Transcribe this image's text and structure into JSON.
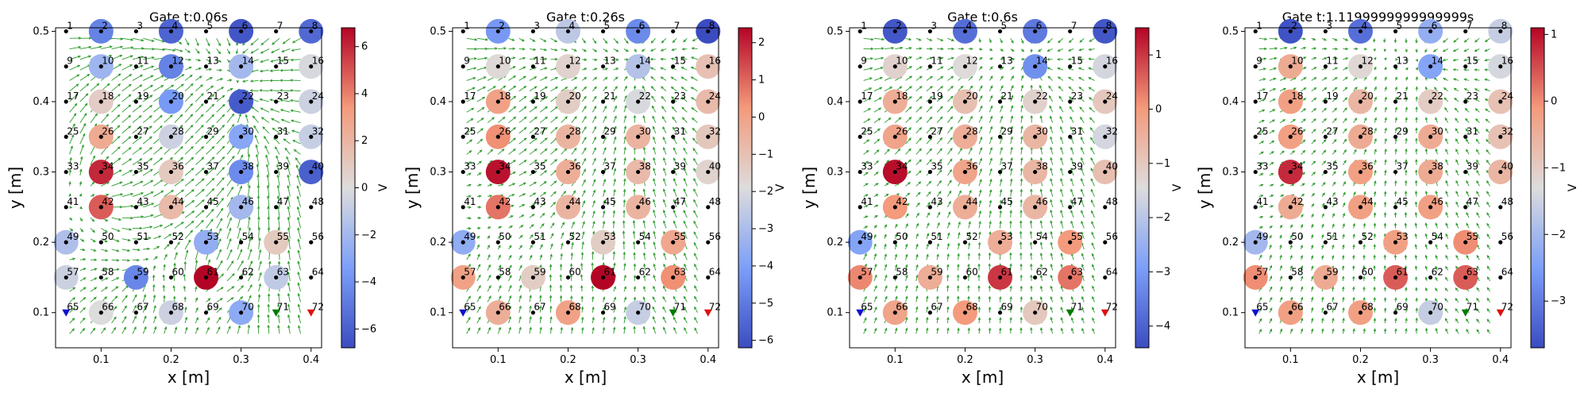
{
  "chart_data": [
    {
      "type": "scatter",
      "title": "Gate t:0.06s",
      "xlabel": "x [m]",
      "ylabel": "y [m]",
      "xlim": [
        0.035,
        0.415
      ],
      "ylim": [
        0.05,
        0.505
      ],
      "x_ticks": [
        0.1,
        0.2,
        0.3,
        0.4
      ],
      "x_tick_labels": [
        "0.1",
        "0.2",
        "0.3",
        "0.4"
      ],
      "y_ticks": [
        0.1,
        0.2,
        0.3,
        0.4,
        0.5
      ],
      "y_tick_labels": [
        "0.1",
        "0.2",
        "0.3",
        "0.4",
        "0.5"
      ],
      "colorbar": {
        "label": "V",
        "colormap": "coolwarm",
        "vmin": -6.8,
        "vmax": 6.8,
        "ticks": [
          -6,
          -4,
          -2,
          0,
          2,
          4,
          6
        ],
        "tick_labels": [
          "−6",
          "−4",
          "−2",
          "0",
          "2",
          "4",
          "6"
        ]
      },
      "electrode_values": {
        "2": -4.6,
        "4": -5.8,
        "6": -6.4,
        "8": -5.6,
        "10": -2.2,
        "12": -4.6,
        "14": -2.0,
        "16": -0.2,
        "18": 0.8,
        "20": -3.6,
        "22": -6.2,
        "24": -0.6,
        "26": 2.6,
        "28": -0.6,
        "30": -3.0,
        "32": -0.8,
        "34": 6.0,
        "36": 1.0,
        "38": -4.2,
        "40": -6.0,
        "42": 4.8,
        "44": 1.8,
        "46": -2.0,
        "49": -1.6,
        "53": -2.6,
        "55": 1.0,
        "57": -0.6,
        "59": -4.4,
        "61": 6.8,
        "63": -1.0,
        "66": 0.0,
        "68": -0.6,
        "70": -2.8
      },
      "markers": [
        {
          "electrode": 65,
          "color": "#1010cc"
        },
        {
          "electrode": 71,
          "color": "#007a00"
        },
        {
          "electrode": 72,
          "color": "#e01010"
        }
      ],
      "colors": {
        "arrows": "#2a9a2a",
        "points": "#000000"
      }
    },
    {
      "type": "scatter",
      "title": "Gate t:0.26s",
      "xlabel": "x [m]",
      "ylabel": "y [m]",
      "xlim": [
        0.035,
        0.415
      ],
      "ylim": [
        0.05,
        0.505
      ],
      "x_ticks": [
        0.1,
        0.2,
        0.3,
        0.4
      ],
      "x_tick_labels": [
        "0.1",
        "0.2",
        "0.3",
        "0.4"
      ],
      "y_ticks": [
        0.1,
        0.2,
        0.3,
        0.4,
        0.5
      ],
      "y_tick_labels": [
        "0.1",
        "0.2",
        "0.3",
        "0.4",
        "0.5"
      ],
      "colorbar": {
        "label": "V",
        "colormap": "coolwarm",
        "vmin": -6.2,
        "vmax": 2.4,
        "ticks": [
          -6,
          -5,
          -4,
          -3,
          -2,
          -1,
          0,
          1,
          2
        ],
        "tick_labels": [
          "−6",
          "−5",
          "−4",
          "−3",
          "−2",
          "−1",
          "0",
          "1",
          "2"
        ]
      },
      "electrode_values": {
        "2": -4.2,
        "4": -2.6,
        "6": -4.6,
        "8": -6.2,
        "10": -1.8,
        "12": -1.6,
        "14": -2.8,
        "16": -1.0,
        "18": 0.0,
        "20": -1.4,
        "22": -2.0,
        "24": -0.8,
        "26": 0.4,
        "28": -0.6,
        "30": -0.6,
        "32": -1.2,
        "34": 2.2,
        "36": -0.4,
        "38": -0.8,
        "40": -1.6,
        "42": 0.8,
        "44": -0.6,
        "46": -0.6,
        "49": -3.6,
        "53": -1.4,
        "55": -0.2,
        "57": 0.0,
        "59": -1.4,
        "61": 2.4,
        "63": 0.4,
        "66": -0.4,
        "68": 0.0,
        "70": -2.4
      },
      "markers": [
        {
          "electrode": 65,
          "color": "#1010cc"
        },
        {
          "electrode": 71,
          "color": "#007a00"
        },
        {
          "electrode": 72,
          "color": "#e01010"
        }
      ],
      "colors": {
        "arrows": "#2a9a2a",
        "points": "#000000"
      }
    },
    {
      "type": "scatter",
      "title": "Gate t:0.6s",
      "xlabel": "x [m]",
      "ylabel": "y [m]",
      "xlim": [
        0.035,
        0.415
      ],
      "ylim": [
        0.05,
        0.505
      ],
      "x_ticks": [
        0.1,
        0.2,
        0.3,
        0.4
      ],
      "x_tick_labels": [
        "0.1",
        "0.2",
        "0.3",
        "0.4"
      ],
      "y_ticks": [
        0.1,
        0.2,
        0.3,
        0.4,
        0.5
      ],
      "y_tick_labels": [
        "0.1",
        "0.2",
        "0.3",
        "0.4",
        "0.5"
      ],
      "colorbar": {
        "label": "V",
        "colormap": "coolwarm",
        "vmin": -4.4,
        "vmax": 1.5,
        "ticks": [
          -4,
          -3,
          -2,
          -1,
          0,
          1
        ],
        "tick_labels": [
          "−4",
          "−3",
          "−2",
          "−1",
          "0",
          "1"
        ]
      },
      "electrode_values": {
        "2": -4.2,
        "4": -3.8,
        "6": -3.6,
        "8": -4.2,
        "10": -1.2,
        "12": -1.4,
        "14": -3.2,
        "16": -1.6,
        "18": -0.4,
        "20": -0.8,
        "22": -1.2,
        "24": -1.0,
        "26": -0.2,
        "28": -0.4,
        "30": -0.6,
        "32": -1.6,
        "34": 1.4,
        "36": -0.2,
        "38": -0.6,
        "40": -0.8,
        "42": 0.0,
        "44": -0.4,
        "46": -0.6,
        "49": -2.8,
        "53": -0.4,
        "55": 0.0,
        "57": 0.2,
        "59": -0.4,
        "61": 1.0,
        "63": 0.4,
        "66": -0.2,
        "68": 0.0,
        "70": -1.0
      },
      "markers": [
        {
          "electrode": 65,
          "color": "#1010cc"
        },
        {
          "electrode": 71,
          "color": "#007a00"
        },
        {
          "electrode": 72,
          "color": "#e01010"
        }
      ],
      "colors": {
        "arrows": "#2a9a2a",
        "points": "#000000"
      }
    },
    {
      "type": "scatter",
      "title": "Gate t:1.1199999999999999s",
      "xlabel": "x [m]",
      "ylabel": "y [m]",
      "xlim": [
        0.035,
        0.415
      ],
      "ylim": [
        0.05,
        0.505
      ],
      "x_ticks": [
        0.1,
        0.2,
        0.3,
        0.4
      ],
      "x_tick_labels": [
        "0.1",
        "0.2",
        "0.3",
        "0.4"
      ],
      "y_ticks": [
        0.1,
        0.2,
        0.3,
        0.4,
        0.5
      ],
      "y_tick_labels": [
        "0.1",
        "0.2",
        "0.3",
        "0.4",
        "0.5"
      ],
      "colorbar": {
        "label": "V",
        "colormap": "coolwarm",
        "vmin": -3.7,
        "vmax": 1.1,
        "ticks": [
          -3,
          -2,
          -1,
          0,
          1
        ],
        "tick_labels": [
          "−3",
          "−2",
          "−1",
          "0",
          "1"
        ]
      },
      "electrode_values": {
        "2": -3.6,
        "4": -3.2,
        "6": -2.2,
        "8": -1.6,
        "10": -0.4,
        "12": -1.2,
        "14": -2.4,
        "16": -1.4,
        "18": -0.2,
        "20": -0.6,
        "22": -1.0,
        "24": -0.8,
        "26": -0.2,
        "28": -0.4,
        "30": -0.4,
        "32": -0.8,
        "34": 0.8,
        "36": -0.2,
        "38": -0.4,
        "40": -0.6,
        "42": -0.4,
        "44": -0.2,
        "46": -0.2,
        "49": -2.0,
        "53": -0.2,
        "55": 0.0,
        "57": 0.0,
        "59": -0.4,
        "61": 0.4,
        "63": 0.4,
        "66": -0.2,
        "68": -0.2,
        "70": -1.6
      },
      "markers": [
        {
          "electrode": 65,
          "color": "#1010cc"
        },
        {
          "electrode": 71,
          "color": "#007a00"
        },
        {
          "electrode": 72,
          "color": "#e01010"
        }
      ],
      "colors": {
        "arrows": "#2a9a2a",
        "points": "#000000"
      }
    }
  ]
}
